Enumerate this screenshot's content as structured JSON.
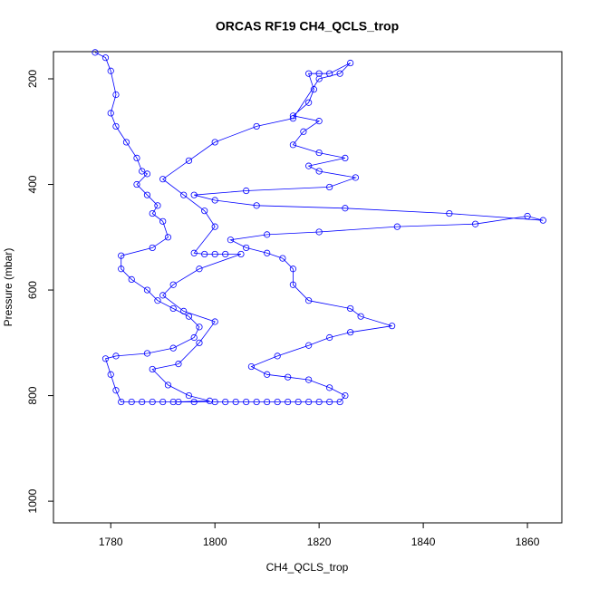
{
  "chart_data": {
    "type": "scatter",
    "title": "ORCAS RF19 CH4_QCLS_trop",
    "xlabel": "CH4_QCLS_trop",
    "ylabel": "Pressure (mbar)",
    "color": "blue",
    "lines": true,
    "xlim": [
      1769,
      1866.6
    ],
    "xticks": [
      1780,
      1800,
      1820,
      1840,
      1860
    ],
    "ylim": [
      1041,
      148.5
    ],
    "yticks": [
      200,
      400,
      600,
      800,
      1000
    ],
    "x": [
      1777,
      1779,
      1780,
      1781,
      1780,
      1781,
      1783,
      1785,
      1786,
      1787,
      1785,
      1787,
      1789,
      1788,
      1790,
      1791,
      1788,
      1782,
      1782,
      1784,
      1787,
      1789,
      1792,
      1795,
      1797,
      1796,
      1792,
      1787,
      1781,
      1779,
      1780,
      1781,
      1782,
      1784,
      1786,
      1788,
      1790,
      1793,
      1796,
      1800,
      1802,
      1804,
      1806,
      1808,
      1810,
      1812,
      1814,
      1816,
      1818,
      1820,
      1822,
      1824,
      1825,
      1822,
      1818,
      1814,
      1810,
      1807,
      1812,
      1818,
      1822,
      1826,
      1834,
      1828,
      1826,
      1818,
      1815,
      1815,
      1813,
      1810,
      1806,
      1803,
      1810,
      1820,
      1835,
      1850,
      1860,
      1863,
      1845,
      1825,
      1808,
      1800,
      1796,
      1806,
      1822,
      1827,
      1820,
      1818,
      1825,
      1820,
      1815,
      1817,
      1820,
      1815,
      1818,
      1819,
      1818,
      1820,
      1822,
      1826,
      1824,
      1820,
      1815,
      1808,
      1800,
      1795,
      1790,
      1794,
      1798,
      1800,
      1796,
      1798,
      1800,
      1802,
      1805,
      1797,
      1792,
      1790,
      1794,
      1800,
      1797,
      1793,
      1788,
      1791,
      1795,
      1799,
      1792
    ],
    "values": [
      150,
      160,
      185,
      230,
      265,
      290,
      320,
      350,
      375,
      380,
      400,
      420,
      440,
      455,
      470,
      500,
      520,
      535,
      560,
      580,
      600,
      620,
      635,
      650,
      670,
      690,
      710,
      720,
      725,
      730,
      760,
      790,
      812,
      812,
      812,
      812,
      812,
      812,
      812,
      812,
      812,
      812,
      812,
      812,
      812,
      812,
      812,
      812,
      812,
      812,
      812,
      812,
      800,
      785,
      770,
      765,
      760,
      745,
      725,
      705,
      690,
      680,
      668,
      650,
      635,
      620,
      590,
      560,
      540,
      530,
      520,
      505,
      495,
      490,
      480,
      475,
      460,
      468,
      455,
      445,
      440,
      430,
      420,
      412,
      405,
      387,
      375,
      365,
      350,
      340,
      325,
      300,
      280,
      270,
      245,
      220,
      190,
      190,
      190,
      170,
      190,
      200,
      275,
      290,
      320,
      355,
      390,
      420,
      450,
      480,
      530,
      532,
      532,
      532,
      532,
      560,
      590,
      610,
      640,
      660,
      700,
      740,
      750,
      780,
      800,
      810,
      812
    ]
  }
}
